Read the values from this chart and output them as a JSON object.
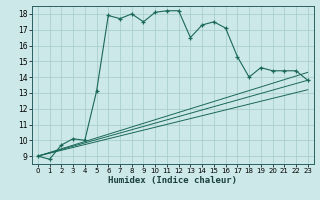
{
  "title": "",
  "xlabel": "Humidex (Indice chaleur)",
  "ylabel": "",
  "background_color": "#cce8e8",
  "grid_color": "#aacece",
  "line_color": "#1a6858",
  "xlim": [
    -0.5,
    23.5
  ],
  "ylim": [
    8.5,
    18.5
  ],
  "yticks": [
    9,
    10,
    11,
    12,
    13,
    14,
    15,
    16,
    17,
    18
  ],
  "xticks": [
    0,
    1,
    2,
    3,
    4,
    5,
    6,
    7,
    8,
    9,
    10,
    11,
    12,
    13,
    14,
    15,
    16,
    17,
    18,
    19,
    20,
    21,
    22,
    23
  ],
  "main_line": {
    "x": [
      0,
      1,
      2,
      3,
      4,
      5,
      6,
      7,
      8,
      9,
      10,
      11,
      12,
      13,
      14,
      15,
      16,
      17,
      18,
      19,
      20,
      21,
      22,
      23
    ],
    "y": [
      9.0,
      8.8,
      9.7,
      10.1,
      10.0,
      13.1,
      17.9,
      17.7,
      18.0,
      17.5,
      18.1,
      18.2,
      18.2,
      16.5,
      17.3,
      17.5,
      17.1,
      15.3,
      14.0,
      14.6,
      14.4,
      14.4,
      14.4,
      13.8
    ]
  },
  "line2": {
    "x": [
      0,
      23
    ],
    "y": [
      9.0,
      13.8
    ]
  },
  "line3": {
    "x": [
      0,
      23
    ],
    "y": [
      9.0,
      14.3
    ]
  },
  "line4": {
    "x": [
      0,
      23
    ],
    "y": [
      9.0,
      13.2
    ]
  }
}
